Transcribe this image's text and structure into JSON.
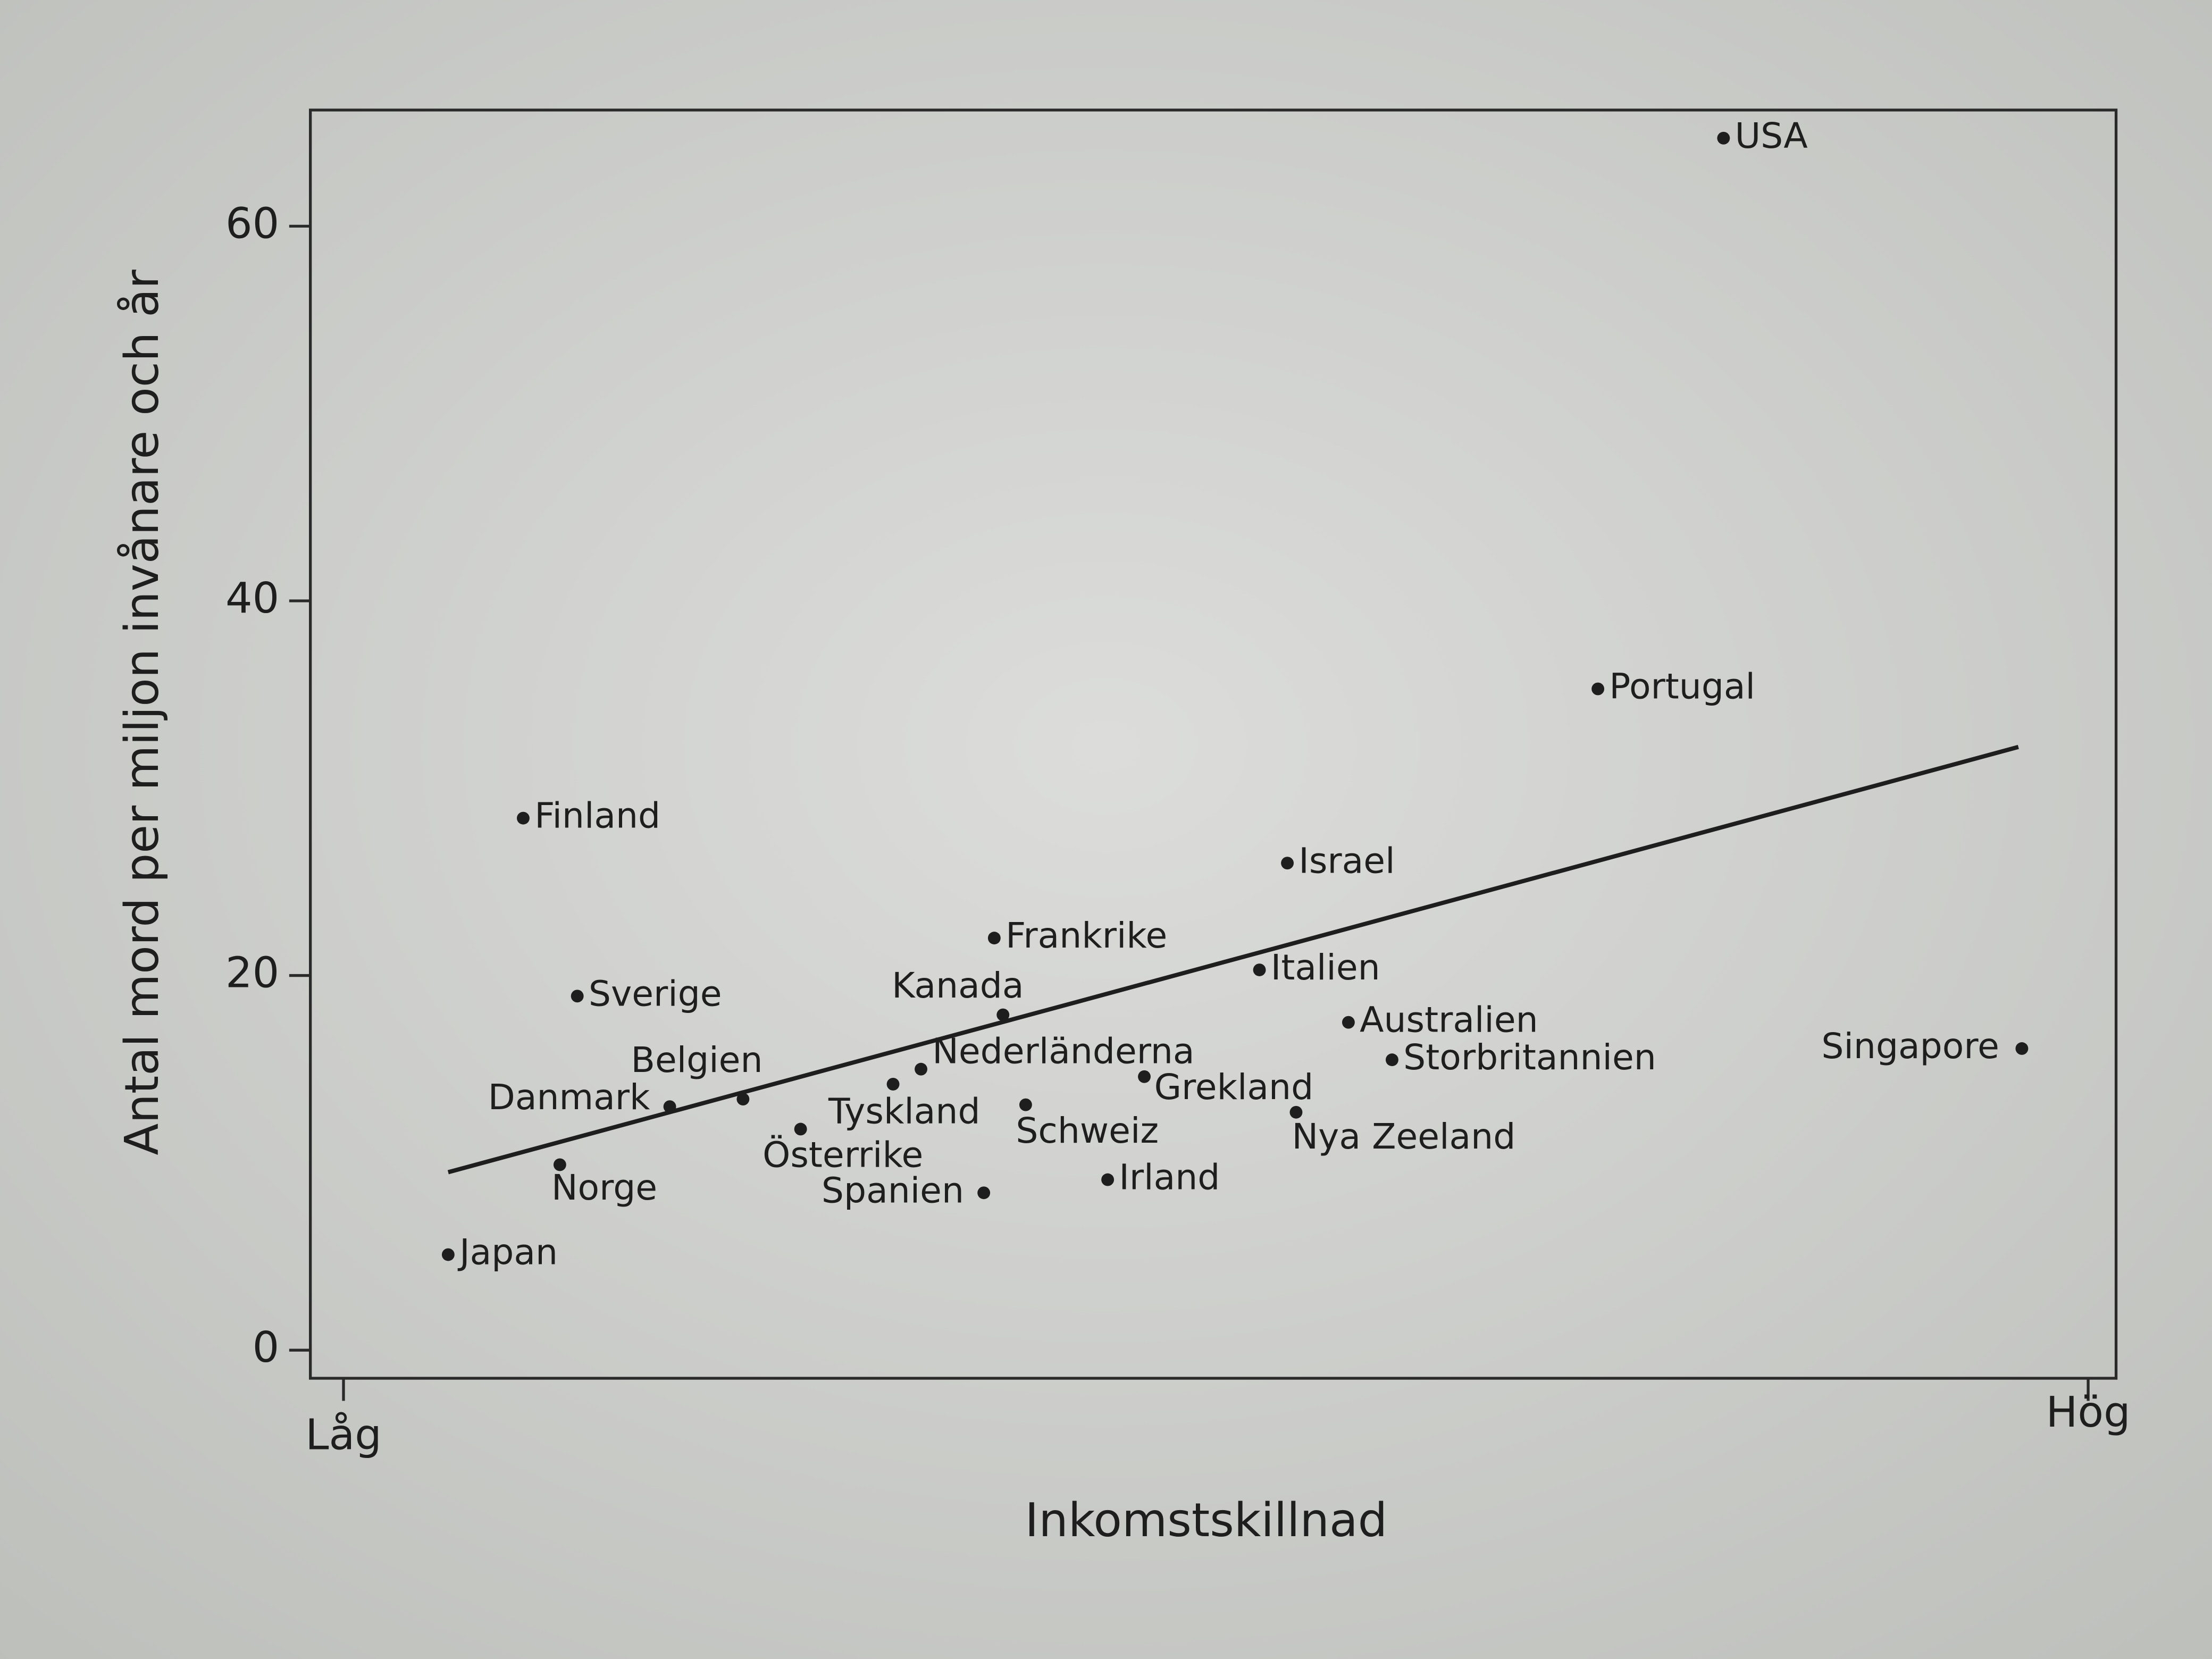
{
  "chart_data": {
    "type": "scatter",
    "xlabel": "Inkomstskillnad",
    "ylabel": "Antal mord per miljon invånare och år",
    "labels": [
      "USA",
      "Portugal",
      "Finland",
      "Israel",
      "Frankrike",
      "Italien",
      "Sverige",
      "Kanada",
      "Australien",
      "Singapore",
      "Storbritannien",
      "Nederländerna",
      "Grekland",
      "Tyskland",
      "Belgien",
      "Danmark",
      "Schweiz",
      "Nya Zeeland",
      "Österrike",
      "Norge",
      "Irland",
      "Spanien",
      "Japan"
    ],
    "x": [
      0.791,
      0.719,
      0.103,
      0.541,
      0.373,
      0.525,
      0.134,
      0.378,
      0.576,
      0.962,
      0.601,
      0.331,
      0.459,
      0.315,
      0.229,
      0.187,
      0.391,
      0.546,
      0.262,
      0.124,
      0.438,
      0.367,
      0.06
    ],
    "values": [
      64.7,
      35.3,
      28.4,
      26.0,
      22.0,
      20.3,
      18.9,
      17.9,
      17.5,
      16.1,
      15.5,
      15.0,
      14.6,
      14.2,
      13.4,
      13.0,
      13.1,
      12.7,
      11.8,
      9.9,
      9.1,
      8.4,
      5.1
    ],
    "color": "#1e1e1e",
    "trendline": {
      "x": [
        0.06,
        0.96
      ],
      "values": [
        9.5,
        32.2
      ]
    },
    "xlim": [
      -0.019,
      1.016
    ],
    "ylim": [
      -1.5,
      66.2
    ],
    "xticks": [
      {
        "value": 0,
        "label": "Låg"
      },
      {
        "value": 1,
        "label": "Hög"
      }
    ],
    "yticks": [
      0,
      20,
      40,
      60
    ]
  }
}
